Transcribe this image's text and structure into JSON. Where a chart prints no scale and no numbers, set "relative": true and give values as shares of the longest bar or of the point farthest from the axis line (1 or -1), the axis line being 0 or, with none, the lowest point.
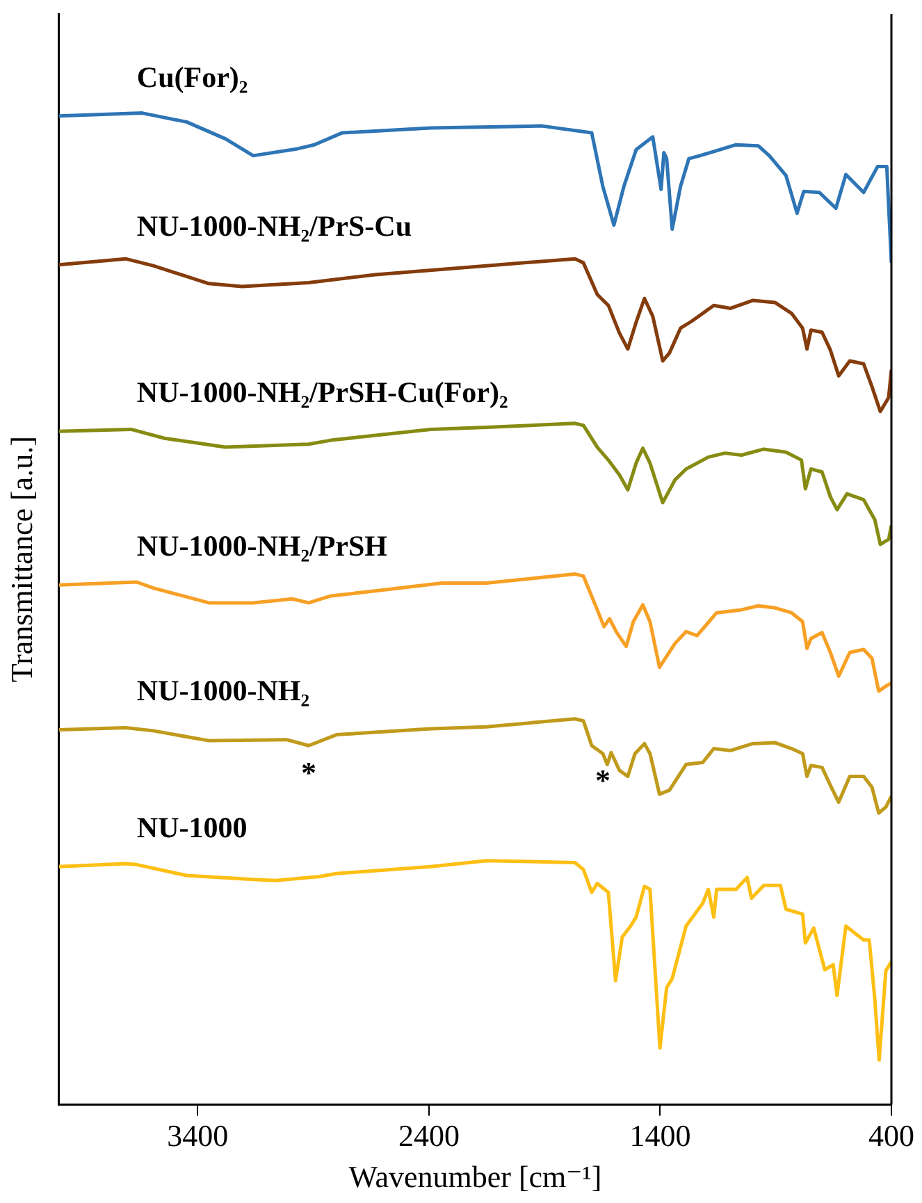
{
  "chart_data": {
    "type": "line",
    "xlabel": "Wavenumber [cm⁻¹]",
    "ylabel": "Transmittance [a.u.]",
    "relative": true,
    "xlim": [
      4000,
      400
    ],
    "xticks": [
      3400,
      2400,
      1400,
      400
    ],
    "legend": false,
    "marker": "none",
    "line_style": "solid",
    "series": [
      {
        "name": "Cu(For)₂",
        "color": "#2e75b6",
        "x": [
          4000,
          3640,
          3448,
          3280,
          3160,
          2968,
          2896,
          2776,
          2392,
          1912,
          1696,
          1648,
          1600,
          1557,
          1504,
          1432,
          1396,
          1384,
          1372,
          1348,
          1312,
          1276,
          1228,
          1072,
          976,
          928,
          856,
          808,
          779,
          712,
          640,
          597,
          520,
          460,
          436,
          420,
          400
        ],
        "values": [
          0.997,
          1.0,
          0.991,
          0.974,
          0.957,
          0.964,
          0.968,
          0.98,
          0.985,
          0.987,
          0.98,
          0.926,
          0.887,
          0.926,
          0.963,
          0.976,
          0.923,
          0.96,
          0.954,
          0.883,
          0.926,
          0.954,
          0.957,
          0.968,
          0.967,
          0.957,
          0.937,
          0.899,
          0.921,
          0.92,
          0.904,
          0.938,
          0.92,
          0.946,
          0.946,
          0.946,
          0.849
        ]
      },
      {
        "name": "NU-1000-NH₂/PrS-Cu",
        "color": "#843c0c",
        "x": [
          4000,
          3712,
          3592,
          3352,
          3208,
          2920,
          2632,
          2152,
          1768,
          1732,
          1672,
          1624,
          1576,
          1540,
          1504,
          1468,
          1432,
          1389,
          1360,
          1312,
          1264,
          1168,
          1096,
          1000,
          904,
          832,
          784,
          765,
          748,
          700,
          664,
          628,
          580,
          520,
          484,
          448,
          412,
          400
        ],
        "values": [
          0.847,
          0.853,
          0.846,
          0.828,
          0.825,
          0.829,
          0.837,
          0.846,
          0.853,
          0.849,
          0.817,
          0.806,
          0.778,
          0.762,
          0.789,
          0.813,
          0.795,
          0.75,
          0.758,
          0.783,
          0.79,
          0.806,
          0.803,
          0.811,
          0.809,
          0.798,
          0.783,
          0.762,
          0.781,
          0.779,
          0.761,
          0.735,
          0.75,
          0.747,
          0.724,
          0.699,
          0.713,
          0.741
        ]
      },
      {
        "name": "NU-1000-NH₂/PrSH-Cu(For)₂",
        "color": "#868b12",
        "x": [
          4000,
          3688,
          3544,
          3280,
          2920,
          2824,
          2392,
          2152,
          1768,
          1732,
          1672,
          1624,
          1576,
          1540,
          1504,
          1475,
          1444,
          1389,
          1336,
          1288,
          1192,
          1120,
          1048,
          952,
          856,
          789,
          772,
          748,
          700,
          664,
          635,
          592,
          520,
          472,
          448,
          412,
          400
        ],
        "values": [
          0.679,
          0.681,
          0.672,
          0.663,
          0.666,
          0.67,
          0.681,
          0.683,
          0.687,
          0.685,
          0.663,
          0.65,
          0.635,
          0.62,
          0.647,
          0.662,
          0.647,
          0.607,
          0.63,
          0.641,
          0.653,
          0.657,
          0.655,
          0.661,
          0.658,
          0.65,
          0.621,
          0.641,
          0.638,
          0.613,
          0.6,
          0.616,
          0.61,
          0.59,
          0.565,
          0.57,
          0.584
        ]
      },
      {
        "name": "NU-1000-NH₂/PrSH",
        "color": "#f7a025",
        "x": [
          4000,
          3664,
          3592,
          3352,
          3160,
          2992,
          2920,
          2824,
          2632,
          2344,
          2152,
          1768,
          1732,
          1672,
          1643,
          1619,
          1588,
          1547,
          1516,
          1475,
          1444,
          1403,
          1336,
          1288,
          1240,
          1156,
          1048,
          976,
          904,
          832,
          784,
          765,
          748,
          700,
          664,
          628,
          580,
          520,
          484,
          455,
          424,
          400
        ],
        "values": [
          0.524,
          0.527,
          0.521,
          0.506,
          0.506,
          0.51,
          0.506,
          0.513,
          0.518,
          0.526,
          0.526,
          0.535,
          0.533,
          0.499,
          0.482,
          0.49,
          0.476,
          0.462,
          0.487,
          0.504,
          0.487,
          0.441,
          0.465,
          0.477,
          0.473,
          0.496,
          0.499,
          0.503,
          0.501,
          0.496,
          0.487,
          0.46,
          0.47,
          0.476,
          0.456,
          0.432,
          0.456,
          0.459,
          0.45,
          0.417,
          0.422,
          0.425
        ]
      },
      {
        "name": "NU-1000-NH₂",
        "color": "#c09a1a",
        "x": [
          4000,
          3712,
          3592,
          3352,
          3016,
          2920,
          2800,
          2392,
          2152,
          1768,
          1732,
          1696,
          1648,
          1629,
          1612,
          1576,
          1540,
          1509,
          1468,
          1444,
          1403,
          1360,
          1288,
          1216,
          1168,
          1096,
          1000,
          904,
          832,
          784,
          765,
          748,
          700,
          664,
          628,
          580,
          520,
          484,
          455,
          424,
          400
        ],
        "values": [
          0.378,
          0.38,
          0.377,
          0.367,
          0.368,
          0.362,
          0.373,
          0.379,
          0.381,
          0.389,
          0.387,
          0.362,
          0.354,
          0.343,
          0.355,
          0.337,
          0.331,
          0.354,
          0.364,
          0.354,
          0.313,
          0.317,
          0.343,
          0.345,
          0.359,
          0.357,
          0.364,
          0.365,
          0.359,
          0.354,
          0.331,
          0.342,
          0.34,
          0.322,
          0.305,
          0.331,
          0.331,
          0.32,
          0.294,
          0.3,
          0.311
        ]
      },
      {
        "name": "NU-1000",
        "color": "#fdbf14",
        "x": [
          4000,
          3712,
          3664,
          3448,
          3160,
          3064,
          2872,
          2800,
          2392,
          2152,
          1768,
          1732,
          1696,
          1672,
          1624,
          1593,
          1564,
          1528,
          1504,
          1468,
          1444,
          1401,
          1372,
          1348,
          1288,
          1216,
          1192,
          1168,
          1156,
          1072,
          1024,
          1005,
          952,
          880,
          856,
          784,
          772,
          736,
          688,
          652,
          635,
          597,
          520,
          496,
          472,
          453,
          424,
          400
        ],
        "values": [
          0.24,
          0.243,
          0.242,
          0.231,
          0.227,
          0.226,
          0.23,
          0.233,
          0.24,
          0.246,
          0.244,
          0.237,
          0.214,
          0.223,
          0.214,
          0.125,
          0.169,
          0.18,
          0.189,
          0.22,
          0.217,
          0.057,
          0.118,
          0.127,
          0.18,
          0.203,
          0.217,
          0.189,
          0.217,
          0.217,
          0.229,
          0.208,
          0.221,
          0.221,
          0.197,
          0.192,
          0.163,
          0.178,
          0.136,
          0.141,
          0.11,
          0.18,
          0.166,
          0.166,
          0.107,
          0.045,
          0.135,
          0.144
        ]
      }
    ],
    "annotations": [
      {
        "text": "*",
        "x": 2920,
        "y": 0.362
      },
      {
        "text": "*",
        "x": 1648,
        "y": 0.354
      }
    ]
  }
}
